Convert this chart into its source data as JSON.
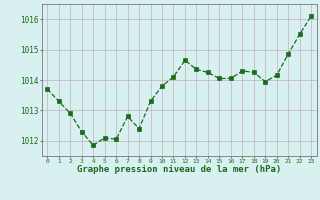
{
  "x": [
    0,
    1,
    2,
    3,
    4,
    5,
    6,
    7,
    8,
    9,
    10,
    11,
    12,
    13,
    14,
    15,
    16,
    17,
    18,
    19,
    20,
    21,
    22,
    23
  ],
  "y": [
    1013.7,
    1013.3,
    1012.9,
    1012.3,
    1011.85,
    1012.1,
    1012.05,
    1012.8,
    1012.4,
    1013.3,
    1013.8,
    1014.1,
    1014.65,
    1014.35,
    1014.25,
    1014.05,
    1014.05,
    1014.3,
    1014.25,
    1013.95,
    1014.15,
    1014.85,
    1015.5,
    1016.1
  ],
  "line_color": "#1a6b1a",
  "marker_color": "#1a6b1a",
  "bg_color": "#d8f0f0",
  "grid_color": "#c8b8c8",
  "xlabel": "Graphe pression niveau de la mer (hPa)",
  "xlabel_color": "#1a6b1a",
  "tick_color": "#1a6b1a",
  "axis_color": "#777777",
  "ylim": [
    1011.5,
    1016.5
  ],
  "yticks": [
    1012,
    1013,
    1014,
    1015,
    1016
  ],
  "xticks": [
    0,
    1,
    2,
    3,
    4,
    5,
    6,
    7,
    8,
    9,
    10,
    11,
    12,
    13,
    14,
    15,
    16,
    17,
    18,
    19,
    20,
    21,
    22,
    23
  ]
}
